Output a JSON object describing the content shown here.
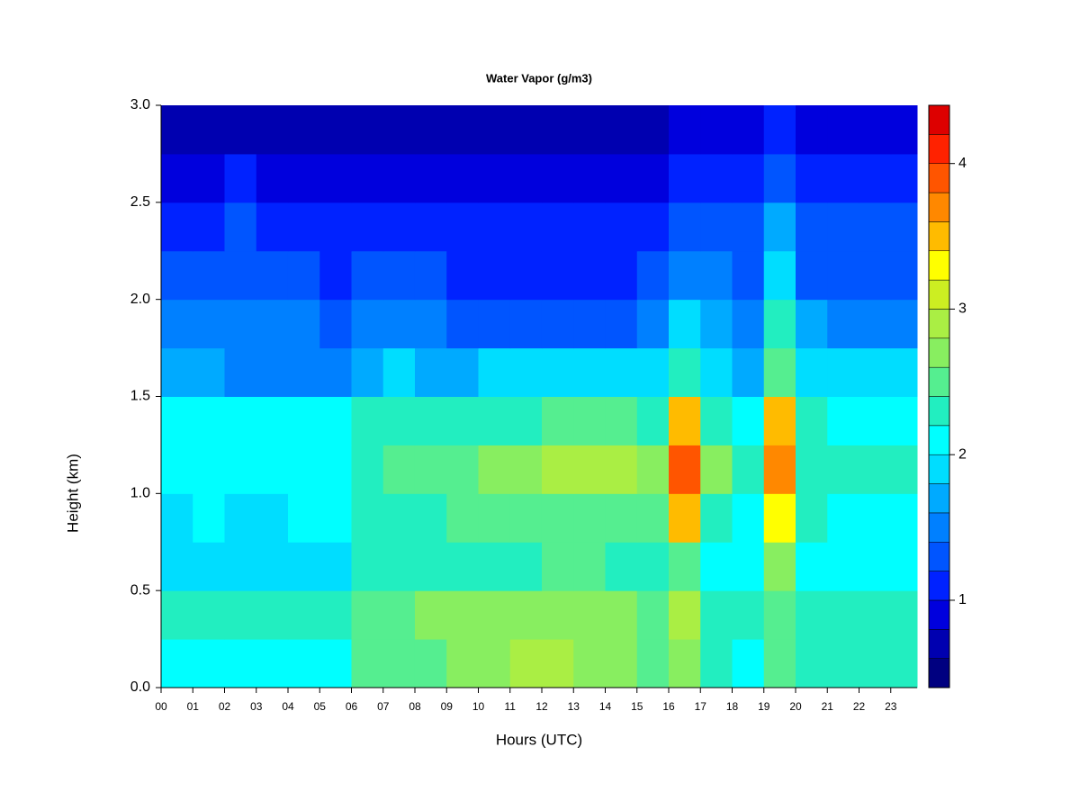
{
  "chart_data": {
    "type": "heatmap",
    "title": "Water Vapor (g/m3)",
    "x_label": "Hours (UTC)",
    "y_label": "Height (km)",
    "x": [
      0,
      1,
      2,
      3,
      4,
      5,
      6,
      7,
      8,
      9,
      10,
      11,
      12,
      13,
      14,
      15,
      16,
      17,
      18,
      19,
      20,
      21,
      22,
      23
    ],
    "y": [
      0,
      0.25,
      0.5,
      0.75,
      1,
      1.25,
      1.5,
      1.75,
      2,
      2.25,
      2.5,
      2.75
    ],
    "values": [
      [
        2.1,
        2.1,
        2.0,
        2.0,
        2.0,
        2.0,
        2.4,
        2.4,
        2.5,
        2.6,
        2.7,
        2.8,
        2.8,
        2.7,
        2.6,
        2.5,
        2.6,
        2.3,
        2.0,
        2.4,
        2.2,
        2.2,
        2.3,
        2.3
      ],
      [
        2.2,
        2.3,
        2.2,
        2.2,
        2.2,
        2.2,
        2.5,
        2.5,
        2.6,
        2.6,
        2.7,
        2.7,
        2.7,
        2.7,
        2.6,
        2.5,
        2.8,
        2.3,
        2.2,
        2.5,
        2.3,
        2.3,
        2.3,
        2.3
      ],
      [
        1.9,
        1.9,
        1.8,
        1.8,
        1.8,
        1.9,
        2.2,
        2.2,
        2.3,
        2.3,
        2.3,
        2.3,
        2.4,
        2.4,
        2.3,
        2.2,
        2.5,
        2.1,
        2.0,
        2.6,
        2.1,
        2.0,
        2.0,
        2.0
      ],
      [
        1.9,
        2.0,
        1.9,
        1.9,
        2.0,
        2.0,
        2.2,
        2.3,
        2.3,
        2.4,
        2.4,
        2.5,
        2.5,
        2.5,
        2.4,
        2.4,
        3.4,
        2.3,
        2.1,
        3.2,
        2.2,
        2.1,
        2.1,
        2.1
      ],
      [
        2.0,
        2.1,
        2.0,
        2.0,
        2.1,
        2.1,
        2.3,
        2.4,
        2.4,
        2.5,
        2.6,
        2.7,
        2.8,
        2.8,
        2.8,
        2.7,
        3.8,
        2.6,
        2.3,
        3.7,
        2.3,
        2.2,
        2.2,
        2.2
      ],
      [
        2.0,
        2.0,
        2.0,
        2.0,
        2.0,
        2.0,
        2.2,
        2.2,
        2.2,
        2.3,
        2.3,
        2.3,
        2.4,
        2.4,
        2.4,
        2.3,
        3.4,
        2.3,
        2.1,
        3.4,
        2.2,
        2.1,
        2.1,
        2.1
      ],
      [
        1.6,
        1.6,
        1.5,
        1.5,
        1.5,
        1.5,
        1.7,
        1.8,
        1.7,
        1.7,
        1.8,
        1.8,
        1.8,
        1.8,
        1.8,
        1.8,
        2.2,
        1.9,
        1.7,
        2.5,
        1.8,
        1.8,
        1.8,
        1.8
      ],
      [
        1.4,
        1.4,
        1.4,
        1.4,
        1.4,
        1.3,
        1.4,
        1.4,
        1.4,
        1.3,
        1.3,
        1.3,
        1.3,
        1.3,
        1.3,
        1.4,
        1.8,
        1.6,
        1.5,
        2.2,
        1.6,
        1.5,
        1.5,
        1.5
      ],
      [
        1.2,
        1.3,
        1.3,
        1.3,
        1.2,
        1.1,
        1.2,
        1.3,
        1.2,
        1.1,
        1.1,
        1.1,
        1.1,
        1.1,
        1.1,
        1.2,
        1.5,
        1.4,
        1.3,
        1.9,
        1.3,
        1.3,
        1.3,
        1.3
      ],
      [
        1.1,
        1.1,
        1.2,
        1.1,
        1.1,
        1.0,
        1.1,
        1.1,
        1.0,
        1.0,
        1.0,
        1.0,
        1.0,
        1.0,
        1.0,
        1.1,
        1.2,
        1.2,
        1.2,
        1.6,
        1.2,
        1.2,
        1.2,
        1.2
      ],
      [
        0.9,
        0.9,
        1.0,
        0.9,
        0.9,
        0.9,
        0.9,
        0.9,
        0.8,
        0.8,
        0.8,
        0.8,
        0.8,
        0.8,
        0.9,
        0.9,
        1.0,
        1.0,
        1.1,
        1.3,
        1.1,
        1.1,
        1.1,
        1.1
      ],
      [
        0.7,
        0.7,
        0.7,
        0.7,
        0.6,
        0.6,
        0.7,
        0.7,
        0.6,
        0.6,
        0.6,
        0.6,
        0.6,
        0.6,
        0.7,
        0.7,
        0.8,
        0.8,
        0.9,
        1.0,
        0.9,
        0.9,
        0.9,
        0.9
      ]
    ],
    "xlim": [
      0,
      23.83
    ],
    "ylim": [
      0,
      3
    ],
    "xticks": [
      {
        "value": 0,
        "label": "00"
      },
      {
        "value": 1,
        "label": "01"
      },
      {
        "value": 2,
        "label": "02"
      },
      {
        "value": 3,
        "label": "03"
      },
      {
        "value": 4,
        "label": "04"
      },
      {
        "value": 5,
        "label": "05"
      },
      {
        "value": 6,
        "label": "06"
      },
      {
        "value": 7,
        "label": "07"
      },
      {
        "value": 8,
        "label": "08"
      },
      {
        "value": 9,
        "label": "09"
      },
      {
        "value": 10,
        "label": "10"
      },
      {
        "value": 11,
        "label": "11"
      },
      {
        "value": 12,
        "label": "12"
      },
      {
        "value": 13,
        "label": "13"
      },
      {
        "value": 14,
        "label": "14"
      },
      {
        "value": 15,
        "label": "15"
      },
      {
        "value": 16,
        "label": "16"
      },
      {
        "value": 17,
        "label": "17"
      },
      {
        "value": 18,
        "label": "18"
      },
      {
        "value": 19,
        "label": "19"
      },
      {
        "value": 20,
        "label": "20"
      },
      {
        "value": 21,
        "label": "21"
      },
      {
        "value": 22,
        "label": "22"
      },
      {
        "value": 23,
        "label": "23"
      }
    ],
    "yticks": [
      {
        "value": 0,
        "label": "0.0"
      },
      {
        "value": 0.5,
        "label": "0.5"
      },
      {
        "value": 1,
        "label": "1.0"
      },
      {
        "value": 1.5,
        "label": "1.5"
      },
      {
        "value": 2,
        "label": "2.0"
      },
      {
        "value": 2.5,
        "label": "2.5"
      },
      {
        "value": 3,
        "label": "3.0"
      }
    ],
    "levels": [
      0.4,
      0.6,
      0.8,
      1.0,
      1.2,
      1.4,
      1.6,
      1.8,
      2.0,
      2.2,
      2.4,
      2.6,
      2.8,
      3.0,
      3.2,
      3.4,
      3.6,
      3.8,
      4.0,
      4.2,
      4.4
    ],
    "colors": [
      "#000080",
      "#0000b0",
      "#0000dd",
      "#0022ff",
      "#0055ff",
      "#0080ff",
      "#00aaff",
      "#00ddff",
      "#00ffff",
      "#22eec0",
      "#55ee90",
      "#88ee60",
      "#aaee44",
      "#ccee22",
      "#ffff00",
      "#ffbb00",
      "#ff8800",
      "#ff5500",
      "#ff2200",
      "#dd0000"
    ],
    "colorbar_ticks": [
      1,
      2,
      3,
      4
    ]
  }
}
